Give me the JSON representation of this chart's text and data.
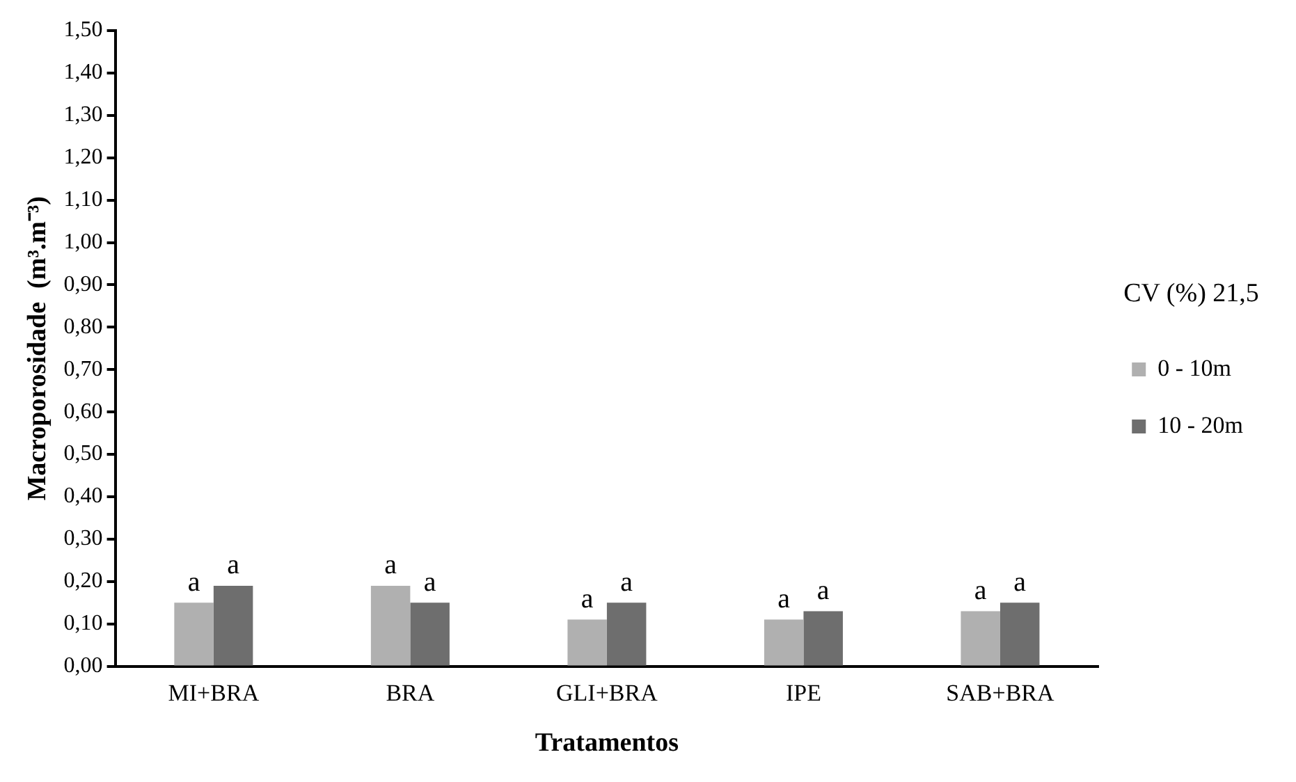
{
  "chart_data": {
    "type": "bar",
    "xlabel": "Tratamentos",
    "ylabel": "Macroporosidade  (m³.m⁻³)",
    "categories": [
      "MI+BRA",
      "BRA",
      "GLI+BRA",
      "IPE",
      "SAB+BRA"
    ],
    "series": [
      {
        "name": "0 - 10m",
        "color": "#b0b0b0",
        "values": [
          0.15,
          0.19,
          0.11,
          0.11,
          0.13
        ],
        "value_labels": [
          "a",
          "a",
          "a",
          "a",
          "a"
        ]
      },
      {
        "name": "10 - 20m",
        "color": "#6e6e6e",
        "values": [
          0.19,
          0.15,
          0.15,
          0.13,
          0.15
        ],
        "value_labels": [
          "a",
          "a",
          "a",
          "a",
          "a"
        ]
      }
    ],
    "ylim": [
      0,
      1.5
    ],
    "yticks": [
      {
        "value": 0,
        "label": "0,00"
      },
      {
        "value": 0.1,
        "label": "0,10"
      },
      {
        "value": 0.2,
        "label": "0,20"
      },
      {
        "value": 0.3,
        "label": "0,30"
      },
      {
        "value": 0.4,
        "label": "0,40"
      },
      {
        "value": 0.5,
        "label": "0,50"
      },
      {
        "value": 0.6,
        "label": "0,60"
      },
      {
        "value": 0.7,
        "label": "0,70"
      },
      {
        "value": 0.8,
        "label": "0,80"
      },
      {
        "value": 0.9,
        "label": "0,90"
      },
      {
        "value": 1.0,
        "label": "1,00"
      },
      {
        "value": 1.1,
        "label": "1,10"
      },
      {
        "value": 1.2,
        "label": "1,20"
      },
      {
        "value": 1.3,
        "label": "1,30"
      },
      {
        "value": 1.4,
        "label": "1,40"
      },
      {
        "value": 1.5,
        "label": "1,50"
      }
    ],
    "annotations": [
      "CV (%) 21,5"
    ],
    "grid": false,
    "legend": "right"
  }
}
